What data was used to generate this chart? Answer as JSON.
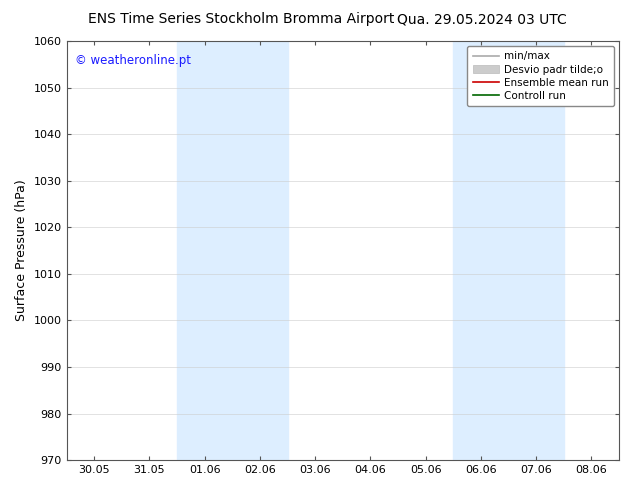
{
  "title_left": "ENS Time Series Stockholm Bromma Airport",
  "title_right": "Qua. 29.05.2024 03 UTC",
  "ylabel": "Surface Pressure (hPa)",
  "ylim": [
    970,
    1060
  ],
  "yticks": [
    970,
    980,
    990,
    1000,
    1010,
    1020,
    1030,
    1040,
    1050,
    1060
  ],
  "xtick_labels": [
    "30.05",
    "31.05",
    "01.06",
    "02.06",
    "03.06",
    "04.06",
    "05.06",
    "06.06",
    "07.06",
    "08.06"
  ],
  "xtick_positions": [
    0,
    1,
    2,
    3,
    4,
    5,
    6,
    7,
    8,
    9
  ],
  "xlim": [
    -0.5,
    9.5
  ],
  "copyright_text": "© weatheronline.pt",
  "copyright_color": "#1a1aff",
  "background_color": "#ffffff",
  "plot_bg_color": "#ffffff",
  "shaded_bands": [
    {
      "xstart": 1.5,
      "xend": 3.5,
      "color": "#ddeeff"
    },
    {
      "xstart": 6.5,
      "xend": 8.5,
      "color": "#ddeeff"
    }
  ],
  "legend_items": [
    {
      "label": "min/max",
      "color": "#aaaaaa",
      "lw": 1.2,
      "style": "line"
    },
    {
      "label": "Desvio padr tilde;o",
      "color": "#cccccc",
      "style": "fill"
    },
    {
      "label": "Ensemble mean run",
      "color": "#cc0000",
      "lw": 1.2,
      "style": "line"
    },
    {
      "label": "Controll run",
      "color": "#006600",
      "lw": 1.2,
      "style": "line"
    }
  ],
  "title_fontsize": 10,
  "tick_fontsize": 8,
  "ylabel_fontsize": 9,
  "legend_fontsize": 7.5
}
